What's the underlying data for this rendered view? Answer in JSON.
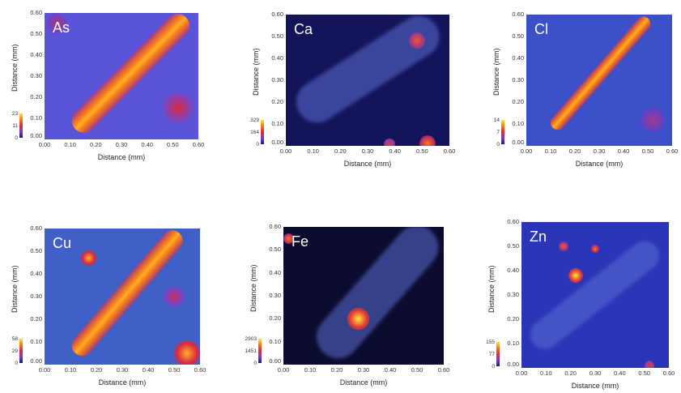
{
  "chart_data": [
    {
      "type": "heatmap",
      "element": "As",
      "xlabel": "Distance (mm)",
      "ylabel": "Distance (mm)",
      "x_ticks": [
        "0.00",
        "0.10",
        "0.20",
        "0.30",
        "0.40",
        "0.50",
        "0.60"
      ],
      "y_ticks": [
        "0.00",
        "0.10",
        "0.20",
        "0.30",
        "0.40",
        "0.50",
        "0.60"
      ],
      "xlim": [
        0,
        0.6
      ],
      "ylim": [
        0,
        0.6
      ],
      "colorbar": {
        "ticks": [
          "23",
          "11",
          "0"
        ],
        "min": 0,
        "max": 23
      },
      "background": "#5a55d8",
      "band": {
        "from": [
          0.12,
          0.05
        ],
        "to": [
          0.55,
          0.58
        ],
        "width": 0.09
      },
      "hotspots": [
        {
          "x": 0.52,
          "y": 0.15,
          "r": 0.06,
          "level": 0.55
        },
        {
          "x": 0.05,
          "y": 0.55,
          "r": 0.04,
          "level": 0.45
        }
      ]
    },
    {
      "type": "heatmap",
      "element": "Ca",
      "xlabel": "Distance (mm)",
      "ylabel": "Distance (mm)",
      "x_ticks": [
        "0.00",
        "0.10",
        "0.20",
        "0.30",
        "0.40",
        "0.50",
        "0.60"
      ],
      "y_ticks": [
        "0.00",
        "0.10",
        "0.20",
        "0.30",
        "0.40",
        "0.50",
        "0.60"
      ],
      "xlim": [
        0,
        0.6
      ],
      "ylim": [
        0,
        0.6
      ],
      "colorbar": {
        "ticks": [
          "329",
          "164",
          "0"
        ],
        "min": 0,
        "max": 329
      },
      "background": "#14145a",
      "band": {
        "from": [
          0.05,
          0.15
        ],
        "to": [
          0.55,
          0.55
        ],
        "width": 0.15
      },
      "hotspots": [
        {
          "x": 0.48,
          "y": 0.48,
          "r": 0.03,
          "level": 0.7
        },
        {
          "x": 0.52,
          "y": 0.01,
          "r": 0.03,
          "level": 0.8
        },
        {
          "x": 0.38,
          "y": 0.01,
          "r": 0.02,
          "level": 0.6
        }
      ]
    },
    {
      "type": "heatmap",
      "element": "Cl",
      "xlabel": "Distance (mm)",
      "ylabel": "Distance (mm)",
      "x_ticks": [
        "0.00",
        "0.10",
        "0.20",
        "0.30",
        "0.40",
        "0.50",
        "0.60"
      ],
      "y_ticks": [
        "0.00",
        "0.10",
        "0.20",
        "0.30",
        "0.40",
        "0.50",
        "0.60"
      ],
      "xlim": [
        0,
        0.6
      ],
      "ylim": [
        0,
        0.6
      ],
      "colorbar": {
        "ticks": [
          "14",
          "7",
          "0"
        ],
        "min": 0,
        "max": 14
      },
      "background": "#3c50c8",
      "band": {
        "from": [
          0.11,
          0.08
        ],
        "to": [
          0.5,
          0.58
        ],
        "width": 0.06
      },
      "hotspots": [
        {
          "x": 0.52,
          "y": 0.12,
          "r": 0.05,
          "level": 0.4
        }
      ]
    },
    {
      "type": "heatmap",
      "element": "Cu",
      "xlabel": "Distance (mm)",
      "ylabel": "Distance (mm)",
      "x_ticks": [
        "0.00",
        "0.10",
        "0.20",
        "0.30",
        "0.40",
        "0.50",
        "0.60"
      ],
      "y_ticks": [
        "0.00",
        "0.10",
        "0.20",
        "0.30",
        "0.40",
        "0.50",
        "0.60"
      ],
      "xlim": [
        0,
        0.6
      ],
      "ylim": [
        0,
        0.6
      ],
      "colorbar": {
        "ticks": [
          "58",
          "29",
          "0"
        ],
        "min": 0,
        "max": 58
      },
      "background": "#4060c8",
      "band": {
        "from": [
          0.12,
          0.05
        ],
        "to": [
          0.52,
          0.58
        ],
        "width": 0.08
      },
      "hotspots": [
        {
          "x": 0.17,
          "y": 0.47,
          "r": 0.03,
          "level": 0.9
        },
        {
          "x": 0.55,
          "y": 0.05,
          "r": 0.05,
          "level": 0.9
        },
        {
          "x": 0.5,
          "y": 0.3,
          "r": 0.04,
          "level": 0.5
        }
      ]
    },
    {
      "type": "heatmap",
      "element": "Fe",
      "xlabel": "Distance (mm)",
      "ylabel": "Distance (mm)",
      "x_ticks": [
        "0.00",
        "0.10",
        "0.20",
        "0.30",
        "0.40",
        "0.50",
        "0.60"
      ],
      "y_ticks": [
        "0.00",
        "0.10",
        "0.20",
        "0.30",
        "0.40",
        "0.50",
        "0.60"
      ],
      "xlim": [
        0,
        0.6
      ],
      "ylim": [
        0,
        0.6
      ],
      "colorbar": {
        "ticks": [
          "2903",
          "1451",
          "0"
        ],
        "min": 0,
        "max": 2903
      },
      "background": "#0c0c30",
      "band": {
        "from": [
          0.15,
          0.05
        ],
        "to": [
          0.55,
          0.58
        ],
        "width": 0.16
      },
      "hotspots": [
        {
          "x": 0.28,
          "y": 0.2,
          "r": 0.04,
          "level": 1.0
        },
        {
          "x": 0.02,
          "y": 0.55,
          "r": 0.02,
          "level": 0.8
        }
      ]
    },
    {
      "type": "heatmap",
      "element": "Zn",
      "xlabel": "Distance (mm)",
      "ylabel": "Distance (mm)",
      "x_ticks": [
        "0.00",
        "0.10",
        "0.20",
        "0.30",
        "0.40",
        "0.50",
        "0.60"
      ],
      "y_ticks": [
        "0.00",
        "0.10",
        "0.20",
        "0.30",
        "0.40",
        "0.50",
        "0.60"
      ],
      "xlim": [
        0,
        0.6
      ],
      "ylim": [
        0,
        0.6
      ],
      "colorbar": {
        "ticks": [
          "155",
          "77",
          "0"
        ],
        "min": 0,
        "max": 155
      },
      "background": "#2a35b8",
      "band": {
        "from": [
          0.05,
          0.1
        ],
        "to": [
          0.55,
          0.5
        ],
        "width": 0.12
      },
      "hotspots": [
        {
          "x": 0.22,
          "y": 0.38,
          "r": 0.03,
          "level": 1.0
        },
        {
          "x": 0.17,
          "y": 0.5,
          "r": 0.02,
          "level": 0.7
        },
        {
          "x": 0.3,
          "y": 0.49,
          "r": 0.015,
          "level": 0.8
        },
        {
          "x": 0.52,
          "y": 0.01,
          "r": 0.02,
          "level": 0.6
        }
      ]
    }
  ]
}
